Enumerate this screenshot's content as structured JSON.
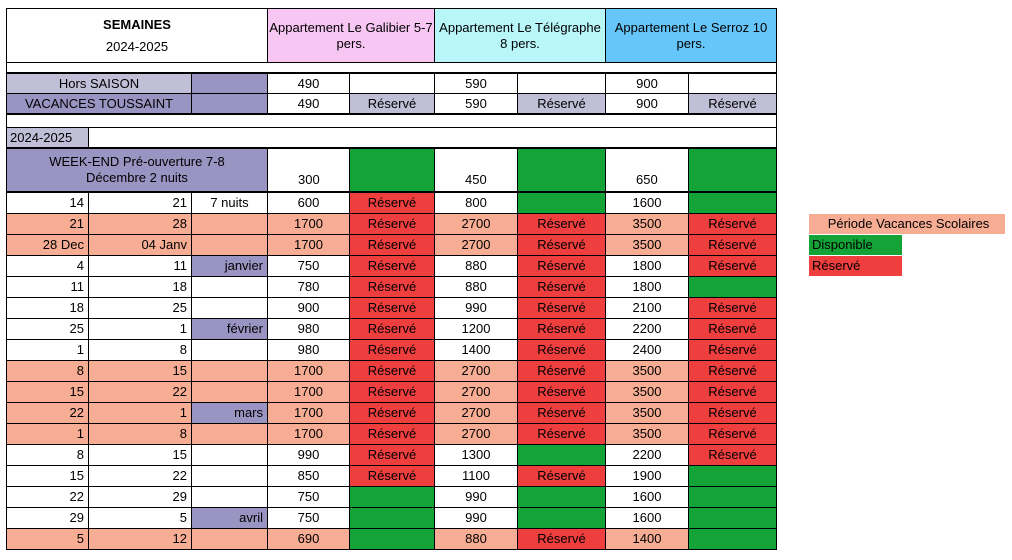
{
  "colors": {
    "pink": "#f7c6f3",
    "cyan": "#b8f6f9",
    "blue": "#66c6f9",
    "purple": "#9a94c2",
    "lilac": "#c1bfd8",
    "salmon": "#f6ad94",
    "green": "#13a337",
    "red": "#ef3e3e"
  },
  "header": {
    "semaines": "SEMAINES",
    "year": "2024-2025",
    "apt1": "Appartement Le Galibier 5-7 pers.",
    "apt2": "Appartement Le Télégraphe 8 pers.",
    "apt3": "Appartement Le Serroz 10 pers."
  },
  "pre": [
    {
      "label": "Hors SAISON",
      "p1": "490",
      "s1": "",
      "p2": "590",
      "s2": "",
      "p3": "900",
      "s3": ""
    },
    {
      "label": "VACANCES TOUSSAINT",
      "p1": "490",
      "s1": "Réservé",
      "p2": "590",
      "s2": "Réservé",
      "p3": "900",
      "s3": "Réservé"
    }
  ],
  "section_label": "2024-2025",
  "weekend": {
    "label": "WEEK-END Pré-ouverture 7-8 Décembre 2 nuits",
    "p1": "300",
    "p2": "450",
    "p3": "650"
  },
  "weeks": [
    {
      "from": "14",
      "to": "21",
      "note": "7 nuits",
      "p1": "600",
      "s1": "Réservé",
      "p2": "800",
      "s2": "",
      "p3": "1600",
      "s3": ""
    },
    {
      "from": "21",
      "to": "28",
      "note": "",
      "p1": "1700",
      "s1": "Réservé",
      "p2": "2700",
      "s2": "Réservé",
      "p3": "3500",
      "s3": "Réservé"
    },
    {
      "from": "28 Dec",
      "to": "04 Janv",
      "note": "",
      "p1": "1700",
      "s1": "Réservé",
      "p2": "2700",
      "s2": "Réservé",
      "p3": "3500",
      "s3": "Réservé"
    },
    {
      "from": "4",
      "to": "11",
      "note": "janvier",
      "p1": "750",
      "s1": "Réservé",
      "p2": "880",
      "s2": "Réservé",
      "p3": "1800",
      "s3": "Réservé"
    },
    {
      "from": "11",
      "to": "18",
      "note": "",
      "p1": "780",
      "s1": "Réservé",
      "p2": "880",
      "s2": "Réservé",
      "p3": "1800",
      "s3": ""
    },
    {
      "from": "18",
      "to": "25",
      "note": "",
      "p1": "900",
      "s1": "Réservé",
      "p2": "990",
      "s2": "Réservé",
      "p3": "2100",
      "s3": "Réservé"
    },
    {
      "from": "25",
      "to": "1",
      "note": "février",
      "p1": "980",
      "s1": "Réservé",
      "p2": "1200",
      "s2": "Réservé",
      "p3": "2200",
      "s3": "Réservé"
    },
    {
      "from": "1",
      "to": "8",
      "note": "",
      "p1": "980",
      "s1": "Réservé",
      "p2": "1400",
      "s2": "Réservé",
      "p3": "2400",
      "s3": "Réservé"
    },
    {
      "from": "8",
      "to": "15",
      "note": "",
      "p1": "1700",
      "s1": "Réservé",
      "p2": "2700",
      "s2": "Réservé",
      "p3": "3500",
      "s3": "Réservé"
    },
    {
      "from": "15",
      "to": "22",
      "note": "",
      "p1": "1700",
      "s1": "Réservé",
      "p2": "2700",
      "s2": "Réservé",
      "p3": "3500",
      "s3": "Réservé"
    },
    {
      "from": "22",
      "to": "1",
      "note": "mars",
      "p1": "1700",
      "s1": "Réservé",
      "p2": "2700",
      "s2": "Réservé",
      "p3": "3500",
      "s3": "Réservé"
    },
    {
      "from": "1",
      "to": "8",
      "note": "",
      "p1": "1700",
      "s1": "Réservé",
      "p2": "2700",
      "s2": "Réservé",
      "p3": "3500",
      "s3": "Réservé"
    },
    {
      "from": "8",
      "to": "15",
      "note": "",
      "p1": "990",
      "s1": "Réservé",
      "p2": "1300",
      "s2": "",
      "p3": "2200",
      "s3": "Réservé"
    },
    {
      "from": "15",
      "to": "22",
      "note": "",
      "p1": "850",
      "s1": "Réservé",
      "p2": "1100",
      "s2": "Réservé",
      "p3": "1900",
      "s3": ""
    },
    {
      "from": "22",
      "to": "29",
      "note": "",
      "p1": "750",
      "s1": "",
      "p2": "990",
      "s2": "",
      "p3": "1600",
      "s3": ""
    },
    {
      "from": "29",
      "to": "5",
      "note": "avril",
      "p1": "750",
      "s1": "",
      "p2": "990",
      "s2": "",
      "p3": "1600",
      "s3": ""
    },
    {
      "from": "5",
      "to": "12",
      "note": "",
      "p1": "690",
      "s1": "",
      "p2": "880",
      "s2": "Réservé",
      "p3": "1400",
      "s3": ""
    }
  ],
  "legend": {
    "vacances": "Période Vacances Scolaires",
    "disponible": "Disponible",
    "reserve": "Réservé"
  }
}
